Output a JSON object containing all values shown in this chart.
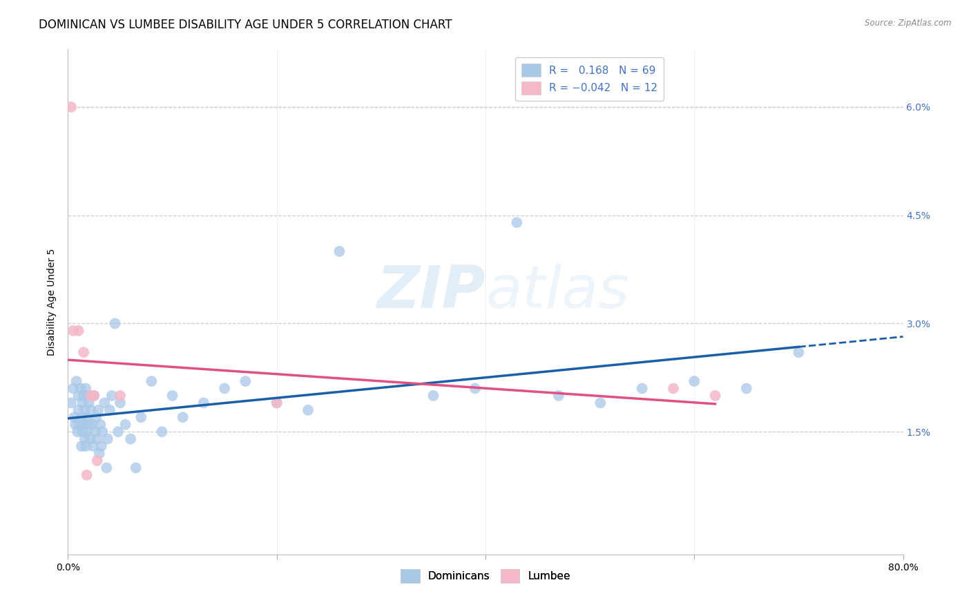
{
  "title": "DOMINICAN VS LUMBEE DISABILITY AGE UNDER 5 CORRELATION CHART",
  "source": "Source: ZipAtlas.com",
  "ylabel": "Disability Age Under 5",
  "xlim": [
    0,
    0.8
  ],
  "ylim": [
    -0.002,
    0.068
  ],
  "yticks": [
    0.015,
    0.03,
    0.045,
    0.06
  ],
  "ytick_labels": [
    "1.5%",
    "3.0%",
    "4.5%",
    "6.0%"
  ],
  "xticks": [
    0.0,
    0.2,
    0.4,
    0.6,
    0.8
  ],
  "xtick_labels": [
    "0.0%",
    "",
    "",
    "",
    "80.0%"
  ],
  "dominican_color": "#a8c8e8",
  "lumbee_color": "#f4b8c8",
  "trend_dominican_color": "#1a5fa8",
  "trend_lumbee_color": "#e05080",
  "r_dominican": 0.168,
  "n_dominican": 69,
  "r_lumbee": -0.042,
  "n_lumbee": 12,
  "dominican_x": [
    0.003,
    0.005,
    0.006,
    0.007,
    0.008,
    0.009,
    0.01,
    0.01,
    0.011,
    0.012,
    0.013,
    0.013,
    0.014,
    0.014,
    0.015,
    0.015,
    0.016,
    0.016,
    0.017,
    0.017,
    0.018,
    0.018,
    0.019,
    0.02,
    0.02,
    0.021,
    0.022,
    0.023,
    0.024,
    0.025,
    0.026,
    0.027,
    0.028,
    0.029,
    0.03,
    0.031,
    0.032,
    0.033,
    0.035,
    0.037,
    0.038,
    0.04,
    0.042,
    0.045,
    0.048,
    0.05,
    0.055,
    0.06,
    0.065,
    0.07,
    0.08,
    0.09,
    0.1,
    0.11,
    0.13,
    0.15,
    0.17,
    0.2,
    0.23,
    0.26,
    0.35,
    0.39,
    0.43,
    0.47,
    0.51,
    0.55,
    0.6,
    0.65,
    0.7
  ],
  "dominican_y": [
    0.019,
    0.021,
    0.017,
    0.016,
    0.022,
    0.015,
    0.02,
    0.018,
    0.016,
    0.021,
    0.013,
    0.017,
    0.019,
    0.015,
    0.02,
    0.016,
    0.014,
    0.018,
    0.021,
    0.013,
    0.017,
    0.015,
    0.02,
    0.016,
    0.019,
    0.014,
    0.018,
    0.016,
    0.013,
    0.02,
    0.015,
    0.017,
    0.014,
    0.018,
    0.012,
    0.016,
    0.013,
    0.015,
    0.019,
    0.01,
    0.014,
    0.018,
    0.02,
    0.03,
    0.015,
    0.019,
    0.016,
    0.014,
    0.01,
    0.017,
    0.022,
    0.015,
    0.02,
    0.017,
    0.019,
    0.021,
    0.022,
    0.019,
    0.018,
    0.04,
    0.02,
    0.021,
    0.044,
    0.02,
    0.019,
    0.021,
    0.022,
    0.021,
    0.026
  ],
  "lumbee_x": [
    0.003,
    0.005,
    0.01,
    0.015,
    0.018,
    0.022,
    0.025,
    0.028,
    0.05,
    0.2,
    0.58,
    0.62
  ],
  "lumbee_y": [
    0.06,
    0.029,
    0.029,
    0.026,
    0.009,
    0.02,
    0.02,
    0.011,
    0.02,
    0.019,
    0.021,
    0.02
  ],
  "watermark_zip": "ZIP",
  "watermark_atlas": "atlas",
  "background_color": "#ffffff",
  "grid_color": "#cccccc",
  "axis_label_color": "#4472c4",
  "title_fontsize": 12,
  "label_fontsize": 10,
  "tick_fontsize": 10
}
